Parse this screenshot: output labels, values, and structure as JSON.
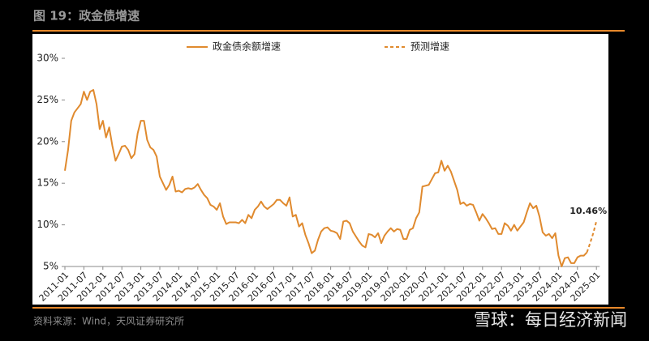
{
  "header": {
    "title": "图 19：政金债增速"
  },
  "chart_data": {
    "type": "line",
    "categories": [
      "2011-01",
      null,
      null,
      null,
      null,
      null,
      "2011-07",
      null,
      null,
      null,
      null,
      null,
      "2012-01",
      null,
      null,
      null,
      null,
      null,
      "2012-07",
      null,
      null,
      null,
      null,
      null,
      "2013-01",
      null,
      null,
      null,
      null,
      null,
      "2013-07",
      null,
      null,
      null,
      null,
      null,
      "2014-01",
      null,
      null,
      null,
      null,
      null,
      "2014-07",
      null,
      null,
      null,
      null,
      null,
      "2015-01",
      null,
      null,
      null,
      null,
      null,
      "2015-07",
      null,
      null,
      null,
      null,
      null,
      "2016-01",
      null,
      null,
      null,
      null,
      null,
      "2016-07",
      null,
      null,
      null,
      null,
      null,
      "2017-01",
      null,
      null,
      null,
      null,
      null,
      "2017-07",
      null,
      null,
      null,
      null,
      null,
      "2018-01",
      null,
      null,
      null,
      null,
      null,
      "2018-07",
      null,
      null,
      null,
      null,
      null,
      "2019-01",
      null,
      null,
      null,
      null,
      null,
      "2019-07",
      null,
      null,
      null,
      null,
      null,
      "2020-01",
      null,
      null,
      null,
      null,
      null,
      "2020-07",
      null,
      null,
      null,
      null,
      null,
      "2021-01",
      null,
      null,
      null,
      null,
      null,
      "2021-07",
      null,
      null,
      null,
      null,
      null,
      "2022-01",
      null,
      null,
      null,
      null,
      null,
      "2022-07",
      null,
      null,
      null,
      null,
      null,
      "2023-01",
      null,
      null,
      null,
      null,
      null,
      "2023-07",
      null,
      null,
      null,
      null,
      null,
      "2024-01",
      null,
      null,
      null,
      null,
      null,
      "2024-07",
      null,
      null,
      null,
      null,
      null,
      "2025-01"
    ],
    "series": [
      {
        "name": "政金债余额增速",
        "color": "#e08a2e",
        "dash": false,
        "values": [
          16.5,
          19,
          22.5,
          23.5,
          24,
          24.5,
          26,
          25,
          26,
          26.2,
          24.5,
          21.5,
          22.5,
          20.5,
          21.7,
          19.5,
          17.7,
          18.5,
          19.4,
          19.5,
          19.0,
          18.0,
          18.5,
          21.0,
          22.5,
          22.5,
          20.2,
          19.3,
          19.0,
          18.2,
          15.8,
          15.0,
          14.2,
          14.8,
          15.8,
          14.0,
          14.1,
          13.9,
          14.3,
          14.4,
          14.3,
          14.5,
          14.9,
          14.2,
          13.6,
          13.2,
          12.4,
          12.2,
          11.8,
          12.6,
          11.0,
          10.1,
          10.3,
          10.3,
          10.3,
          10.2,
          10.6,
          10.2,
          11.2,
          10.8,
          11.8,
          12.2,
          12.8,
          12.2,
          11.9,
          12.2,
          12.5,
          13.0,
          13.0,
          12.6,
          12.3,
          13.3,
          11.0,
          11.2,
          9.8,
          10.2,
          8.8,
          7.8,
          6.6,
          6.9,
          8.2,
          9.2,
          9.6,
          9.7,
          9.3,
          9.2,
          9.0,
          8.3,
          10.4,
          10.5,
          10.2,
          9.2,
          8.6,
          8.0,
          7.5,
          7.3,
          8.9,
          8.8,
          8.5,
          9.0,
          7.8,
          8.7,
          9.2,
          9.6,
          9.2,
          9.5,
          9.4,
          8.3,
          8.3,
          9.4,
          9.6,
          10.8,
          11.5,
          14.6,
          14.7,
          14.8,
          15.5,
          16.2,
          16.3,
          17.7,
          16.5,
          17.1,
          16.4,
          15.3,
          14.2,
          12.5,
          12.7,
          12.3,
          12.5,
          12.4,
          11.5,
          10.5,
          11.3,
          10.8,
          10.2,
          9.5,
          9.6,
          8.9,
          8.9,
          10.2,
          9.9,
          9.3,
          10.0,
          9.3,
          9.8,
          10.3,
          11.5,
          12.6,
          12.0,
          12.3,
          11.0,
          9.1,
          8.7,
          8.9,
          8.4,
          9.0,
          6.3,
          5.0,
          6.0,
          6.1,
          5.4,
          5.4,
          6.1,
          6.3,
          6.3,
          6.7,
          null,
          null,
          null
        ]
      },
      {
        "name": "预测增速",
        "color": "#e08a2e",
        "dash": true,
        "values": [
          null,
          null,
          null,
          null,
          null,
          null,
          null,
          null,
          null,
          null,
          null,
          null,
          null,
          null,
          null,
          null,
          null,
          null,
          null,
          null,
          null,
          null,
          null,
          null,
          null,
          null,
          null,
          null,
          null,
          null,
          null,
          null,
          null,
          null,
          null,
          null,
          null,
          null,
          null,
          null,
          null,
          null,
          null,
          null,
          null,
          null,
          null,
          null,
          null,
          null,
          null,
          null,
          null,
          null,
          null,
          null,
          null,
          null,
          null,
          null,
          null,
          null,
          null,
          null,
          null,
          null,
          null,
          null,
          null,
          null,
          null,
          null,
          null,
          null,
          null,
          null,
          null,
          null,
          null,
          null,
          null,
          null,
          null,
          null,
          null,
          null,
          null,
          null,
          null,
          null,
          null,
          null,
          null,
          null,
          null,
          null,
          null,
          null,
          null,
          null,
          null,
          null,
          null,
          null,
          null,
          null,
          null,
          null,
          null,
          null,
          null,
          null,
          null,
          null,
          null,
          null,
          null,
          null,
          null,
          null,
          null,
          null,
          null,
          null,
          null,
          null,
          null,
          null,
          null,
          null,
          null,
          null,
          null,
          null,
          null,
          null,
          null,
          null,
          null,
          null,
          null,
          null,
          null,
          null,
          null,
          null,
          null,
          null,
          null,
          null,
          null,
          null,
          null,
          null,
          null,
          null,
          null,
          null,
          null,
          null,
          null,
          null,
          null,
          null,
          null,
          6.7,
          7.8,
          9.0,
          10.46
        ],
        "value_labels": [
          null,
          null,
          null,
          null,
          null,
          null,
          null,
          null,
          null,
          null,
          null,
          null,
          null,
          null,
          null,
          null,
          null,
          null,
          null,
          null,
          null,
          null,
          null,
          null,
          null,
          null,
          null,
          null,
          null,
          null,
          null,
          null,
          null,
          null,
          null,
          null,
          null,
          null,
          null,
          null,
          null,
          null,
          null,
          null,
          null,
          null,
          null,
          null,
          null,
          null,
          null,
          null,
          null,
          null,
          null,
          null,
          null,
          null,
          null,
          null,
          null,
          null,
          null,
          null,
          null,
          null,
          null,
          null,
          null,
          null,
          null,
          null,
          null,
          null,
          null,
          null,
          null,
          null,
          null,
          null,
          null,
          null,
          null,
          null,
          null,
          null,
          null,
          null,
          null,
          null,
          null,
          null,
          null,
          null,
          null,
          null,
          null,
          null,
          null,
          null,
          null,
          null,
          null,
          null,
          null,
          null,
          null,
          null,
          null,
          null,
          null,
          null,
          null,
          null,
          null,
          null,
          null,
          null,
          null,
          null,
          null,
          null,
          null,
          null,
          null,
          null,
          null,
          null,
          null,
          null,
          null,
          null,
          null,
          null,
          null,
          null,
          null,
          null,
          null,
          null,
          null,
          null,
          null,
          null,
          null,
          null,
          null,
          null,
          null,
          null,
          null,
          null,
          null,
          null,
          null,
          null,
          null,
          null,
          null,
          null,
          null,
          null,
          null,
          null,
          null,
          null,
          null,
          null,
          "10.46%"
        ]
      }
    ],
    "ylim": [
      5,
      30
    ],
    "yticks": [
      {
        "value": 5,
        "label": "5%"
      },
      {
        "value": 10,
        "label": "10%"
      },
      {
        "value": 15,
        "label": "15%"
      },
      {
        "value": 20,
        "label": "20%"
      },
      {
        "value": 25,
        "label": "25%"
      },
      {
        "value": 30,
        "label": "30%"
      }
    ],
    "grid": false,
    "legend": "top"
  },
  "source": "资料来源：Wind，天风证券研究所",
  "watermark": "雪球：每日经济新闻"
}
